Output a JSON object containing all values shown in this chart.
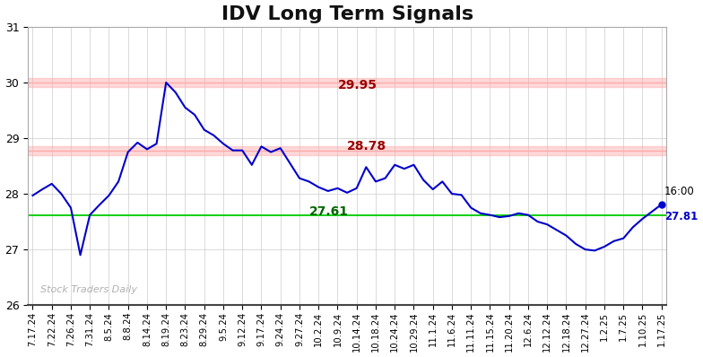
{
  "title": "IDV Long Term Signals",
  "title_fontsize": 16,
  "watermark": "Stock Traders Daily",
  "line_color": "#0000cc",
  "line_width": 1.5,
  "background_color": "#ffffff",
  "grid_color": "#cccccc",
  "hline_upper": 30.0,
  "hline_upper_band_lo": 29.92,
  "hline_upper_band_hi": 30.08,
  "hline_upper_color": "#ffaaaa",
  "hline_middle": 28.78,
  "hline_middle_band_lo": 28.7,
  "hline_middle_band_hi": 28.86,
  "hline_middle_color": "#ffaaaa",
  "hline_lower": 27.61,
  "hline_lower_color": "#00cc00",
  "ann_upper_text": "29.95",
  "ann_upper_color": "#990000",
  "ann_middle_text": "28.78",
  "ann_middle_color": "#990000",
  "ann_lower_text": "27.61",
  "ann_lower_color": "#006600",
  "ann_end_time": "16:00",
  "ann_end_price": "27.81",
  "ann_end_price_color": "#0000cc",
  "ylim": [
    26,
    31
  ],
  "yticks": [
    26,
    27,
    28,
    29,
    30,
    31
  ],
  "x_labels": [
    "7.17.24",
    "7.22.24",
    "7.26.24",
    "7.31.24",
    "8.5.24",
    "8.8.24",
    "8.14.24",
    "8.19.24",
    "8.23.24",
    "8.29.24",
    "9.5.24",
    "9.12.24",
    "9.17.24",
    "9.24.24",
    "9.27.24",
    "10.2.24",
    "10.9.24",
    "10.14.24",
    "10.18.24",
    "10.24.24",
    "10.29.24",
    "11.1.24",
    "11.6.24",
    "11.11.24",
    "11.15.24",
    "11.20.24",
    "12.6.24",
    "12.12.24",
    "12.18.24",
    "12.27.24",
    "1.2.25",
    "1.7.25",
    "1.10.25",
    "1.17.25"
  ],
  "anchors_x": [
    0,
    1,
    2,
    3,
    4,
    5,
    6,
    7,
    8,
    9,
    10,
    11,
    12,
    13,
    14,
    15,
    16,
    17,
    18,
    19,
    20,
    21,
    22,
    23,
    24,
    25,
    26,
    27,
    28,
    29,
    30,
    31,
    32,
    33,
    34,
    35,
    36,
    37,
    38,
    39,
    40,
    41,
    42,
    43,
    44,
    45,
    46,
    47,
    48,
    49,
    50,
    51,
    52,
    53,
    54,
    55,
    56,
    57,
    58,
    59,
    60,
    61,
    62,
    63,
    64,
    65,
    66
  ],
  "anchors_y": [
    27.97,
    28.08,
    28.18,
    28.0,
    27.75,
    26.9,
    27.62,
    27.8,
    27.97,
    28.22,
    28.75,
    28.92,
    28.8,
    28.9,
    30.0,
    29.82,
    29.55,
    29.42,
    29.15,
    29.05,
    28.9,
    28.78,
    28.78,
    28.52,
    28.85,
    28.75,
    28.82,
    28.55,
    28.28,
    28.22,
    28.12,
    28.05,
    28.1,
    28.02,
    28.1,
    28.48,
    28.22,
    28.28,
    28.52,
    28.45,
    28.52,
    28.25,
    28.08,
    28.22,
    28.0,
    27.98,
    27.75,
    27.65,
    27.62,
    27.58,
    27.6,
    27.65,
    27.62,
    27.5,
    27.45,
    27.35,
    27.25,
    27.1,
    27.0,
    26.98,
    27.05,
    27.15,
    27.2,
    27.4,
    27.55,
    27.68,
    27.81
  ],
  "N": 67,
  "n_ticks": 34
}
